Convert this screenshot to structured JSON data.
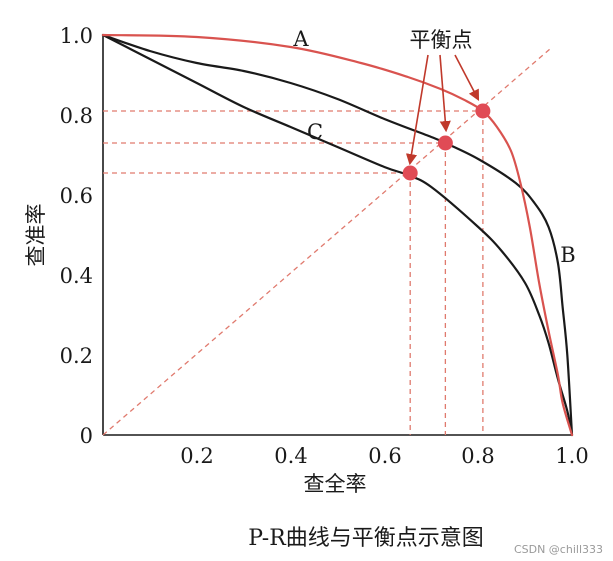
{
  "chart_data": {
    "type": "line",
    "title": "P-R曲线与平衡点示意图",
    "xlabel": "查全率",
    "ylabel": "查准率",
    "xlim": [
      0,
      1
    ],
    "ylim": [
      0,
      1
    ],
    "x_ticks": [
      "0.2",
      "0.4",
      "0.6",
      "0.8",
      "1.0"
    ],
    "y_ticks": [
      "0",
      "0.2",
      "0.4",
      "0.6",
      "0.8",
      "1.0"
    ],
    "grid": false,
    "colors": {
      "red": "#d9534f",
      "black": "#1a1a1a",
      "guide": "#e07a6e",
      "point": "#e04b55"
    },
    "series": [
      {
        "name": "A",
        "color": "#d9534f",
        "x": [
          0,
          0.2,
          0.4,
          0.55,
          0.65,
          0.72,
          0.77,
          0.81,
          0.84,
          0.87,
          0.89,
          0.91,
          0.93,
          0.95,
          0.97,
          0.98,
          1.0
        ],
        "y": [
          1.0,
          0.995,
          0.97,
          0.93,
          0.895,
          0.865,
          0.838,
          0.81,
          0.77,
          0.71,
          0.63,
          0.52,
          0.38,
          0.26,
          0.15,
          0.08,
          0
        ]
      },
      {
        "name": "B",
        "color": "#1a1a1a",
        "x": [
          0,
          0.1,
          0.2,
          0.3,
          0.4,
          0.5,
          0.6,
          0.7,
          0.73,
          0.8,
          0.88,
          0.92,
          0.95,
          0.97,
          0.98,
          0.99,
          1.0
        ],
        "y": [
          1.0,
          0.96,
          0.93,
          0.91,
          0.88,
          0.84,
          0.79,
          0.745,
          0.73,
          0.69,
          0.63,
          0.58,
          0.52,
          0.43,
          0.32,
          0.2,
          0
        ]
      },
      {
        "name": "C",
        "color": "#1a1a1a",
        "x": [
          0,
          0.1,
          0.2,
          0.3,
          0.4,
          0.5,
          0.6,
          0.65,
          0.7,
          0.8,
          0.85,
          0.9,
          0.93,
          0.95,
          0.97,
          0.99,
          1.0
        ],
        "y": [
          1.0,
          0.94,
          0.88,
          0.82,
          0.77,
          0.72,
          0.67,
          0.65,
          0.62,
          0.52,
          0.46,
          0.38,
          0.3,
          0.23,
          0.14,
          0.06,
          0
        ]
      }
    ],
    "diagonal": {
      "x": [
        0,
        1
      ],
      "y": [
        0,
        1
      ]
    },
    "break_even_points": [
      {
        "x": 0.81,
        "y": 0.81,
        "curve": "A"
      },
      {
        "x": 0.73,
        "y": 0.73,
        "curve": "B"
      },
      {
        "x": 0.655,
        "y": 0.655,
        "curve": "C"
      }
    ],
    "annotations": {
      "balance_label": "平衡点",
      "curve_A": "A",
      "curve_B": "B",
      "curve_C": "C"
    }
  },
  "watermark": "CSDN @chill333"
}
